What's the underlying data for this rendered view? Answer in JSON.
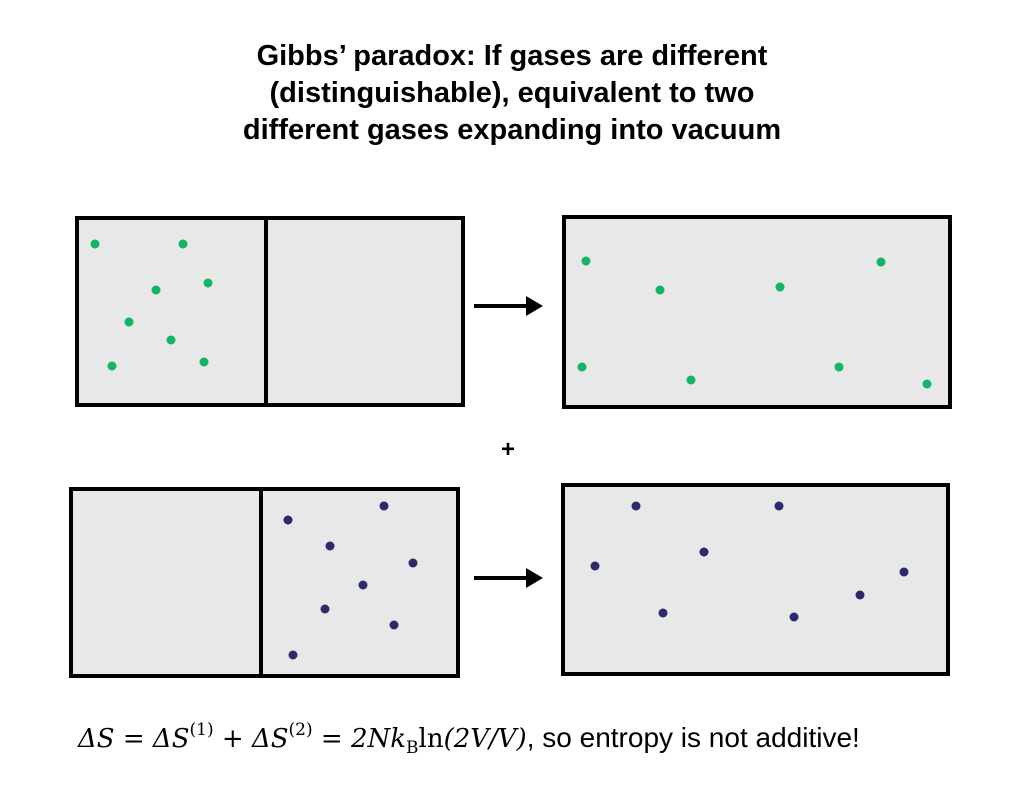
{
  "title_lines": [
    "Gibbs’ paradox: If gases are different",
    "(distinguishable), equivalent to two",
    "different gases expanding into vacuum"
  ],
  "plus_sign": "+",
  "formula": {
    "delta_s": "ΔS",
    "eq1": " = ",
    "term1_base": "ΔS",
    "term1_sup": "(1)",
    "plus": " + ",
    "term2_base": "ΔS",
    "term2_sup": "(2)",
    "eq2": " = ",
    "coef": "2Nk",
    "coef_sub": "B",
    "ln": "ln",
    "arg": "(2V/V)",
    "suffix": ", so entropy is not additive!"
  },
  "colors": {
    "gas1": "#12b564",
    "gas2": "#2a2a6e",
    "box_fill": "#e8e8e8",
    "stroke": "#000000"
  }
}
